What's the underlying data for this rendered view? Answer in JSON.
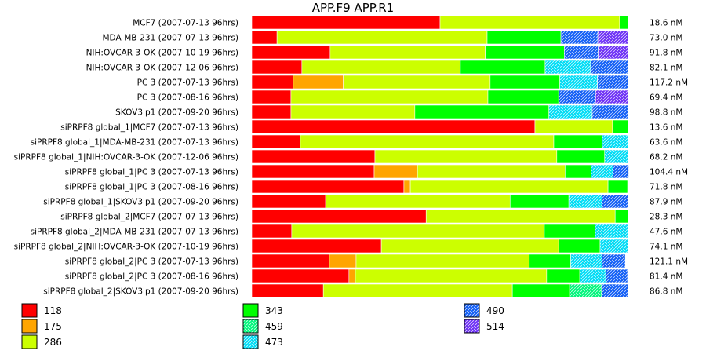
{
  "chart_data": {
    "type": "bar",
    "orientation": "horizontal",
    "stacked": true,
    "normalized": true,
    "title": "APP.F9  APP.R1",
    "categories": [
      "MCF7 (2007-07-13 96hrs)",
      "MDA-MB-231 (2007-07-13 96hrs)",
      "NIH:OVCAR-3-OK (2007-10-19 96hrs)",
      "NIH:OVCAR-3-OK (2007-12-06 96hrs)",
      "PC 3 (2007-07-13 96hrs)",
      "PC 3 (2007-08-16 96hrs)",
      "SKOV3ip1 (2007-09-20 96hrs)",
      "siPRPF8 global_1|MCF7 (2007-07-13 96hrs)",
      "siPRPF8 global_1|MDA-MB-231 (2007-07-13 96hrs)",
      "siPRPF8 global_1|NIH:OVCAR-3-OK (2007-12-06 96hrs)",
      "siPRPF8 global_1|PC 3 (2007-07-13 96hrs)",
      "siPRPF8 global_1|PC 3 (2007-08-16 96hrs)",
      "siPRPF8 global_1|SKOV3ip1 (2007-09-20 96hrs)",
      "siPRPF8 global_2|MCF7 (2007-07-13 96hrs)",
      "siPRPF8 global_2|MDA-MB-231 (2007-07-13 96hrs)",
      "siPRPF8 global_2|NIH:OVCAR-3-OK (2007-10-19 96hrs)",
      "siPRPF8 global_2|PC 3 (2007-07-13 96hrs)",
      "siPRPF8 global_2|PC 3 (2007-08-16 96hrs)",
      "siPRPF8 global_2|SKOV3ip1 (2007-09-20 96hrs)"
    ],
    "totals": [
      "18.6 nM",
      "73.0 nM",
      "91.8 nM",
      "82.1 nM",
      "117.2 nM",
      "69.4 nM",
      "98.8 nM",
      "13.6 nM",
      "63.6 nM",
      "68.2 nM",
      "104.4 nM",
      "71.8 nM",
      "87.9 nM",
      "28.3 nM",
      "47.6 nM",
      "74.1 nM",
      "121.1 nM",
      "81.4 nM",
      "86.8 nM"
    ],
    "series": [
      {
        "name": "118",
        "color": "#ff0000",
        "pattern": "solid",
        "values": [
          0.5,
          0.067,
          0.208,
          0.133,
          0.11,
          0.104,
          0.104,
          0.752,
          0.129,
          0.327,
          0.325,
          0.404,
          0.196,
          0.463,
          0.106,
          0.344,
          0.206,
          0.258,
          0.19
        ]
      },
      {
        "name": "175",
        "color": "#ffa500",
        "pattern": "solid",
        "values": [
          0,
          0,
          0,
          0,
          0.133,
          0,
          0,
          0,
          0,
          0,
          0.115,
          0.017,
          0,
          0,
          0,
          0,
          0.071,
          0.017,
          0
        ]
      },
      {
        "name": "286",
        "color": "#ccff00",
        "pattern": "solid",
        "values": [
          0.477,
          0.558,
          0.412,
          0.421,
          0.39,
          0.523,
          0.329,
          0.206,
          0.673,
          0.483,
          0.392,
          0.525,
          0.49,
          0.502,
          0.671,
          0.471,
          0.46,
          0.508,
          0.502
        ]
      },
      {
        "name": "343",
        "color": "#00ff00",
        "pattern": "solid",
        "values": [
          0.023,
          0.196,
          0.21,
          0.225,
          0.185,
          0.188,
          0.356,
          0.042,
          0.129,
          0.127,
          0.069,
          0.052,
          0.156,
          0.035,
          0.135,
          0.11,
          0.11,
          0.088,
          0.152
        ]
      },
      {
        "name": "459",
        "color": "#00ff80",
        "pattern": "hatch",
        "values": [
          0,
          0,
          0,
          0,
          0,
          0,
          0,
          0,
          0,
          0,
          0,
          0,
          0,
          0,
          0,
          0,
          0,
          0,
          0.085
        ]
      },
      {
        "name": "473",
        "color": "#00e5ff",
        "pattern": "hatch",
        "values": [
          0,
          0,
          0,
          0.121,
          0.1,
          0,
          0.115,
          0,
          0.069,
          0.063,
          0.058,
          0,
          0.088,
          0,
          0.088,
          0.075,
          0.083,
          0.069,
          0
        ]
      },
      {
        "name": "490",
        "color": "#1060ff",
        "pattern": "hatch",
        "values": [
          0,
          0.098,
          0.09,
          0.1,
          0.081,
          0.098,
          0.096,
          0,
          0,
          0,
          0.042,
          0,
          0.069,
          0,
          0,
          0,
          0.062,
          0.058,
          0.071
        ]
      },
      {
        "name": "514",
        "color": "#7030ff",
        "pattern": "hatch",
        "values": [
          0,
          0.081,
          0.08,
          0,
          0,
          0.087,
          0,
          0,
          0,
          0,
          0,
          0,
          0,
          0,
          0,
          0,
          0,
          0,
          0
        ]
      }
    ],
    "xlim": [
      0,
      1
    ],
    "grid": false,
    "legend_position": "bottom"
  }
}
